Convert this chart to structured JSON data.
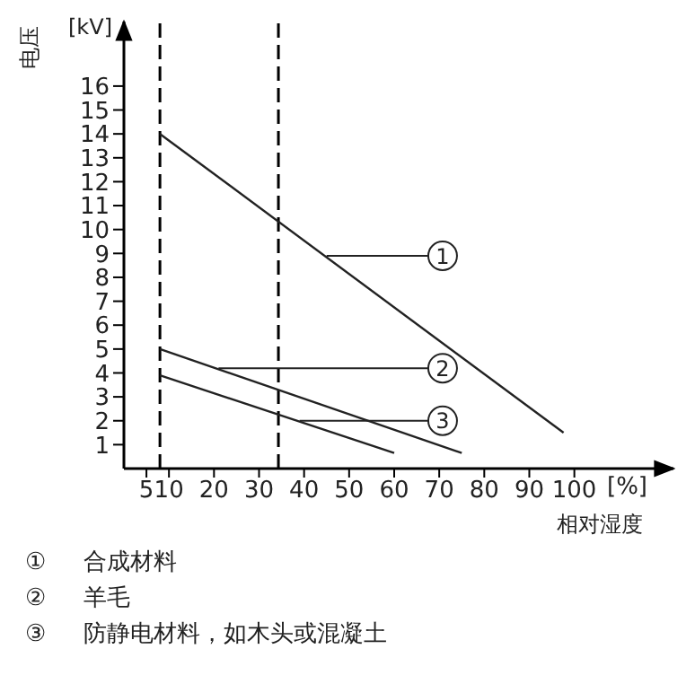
{
  "chart_data": {
    "type": "line",
    "ylabel": "电压",
    "xlabel": "相对湿度",
    "xlim": [
      0,
      122
    ],
    "ylim": [
      0,
      18.7
    ],
    "xticks": [
      5,
      10,
      20,
      30,
      40,
      50,
      60,
      70,
      80,
      90,
      100
    ],
    "yticks": [
      1,
      2,
      3,
      4,
      5,
      6,
      7,
      8,
      9,
      10,
      11,
      12,
      13,
      14,
      15,
      16
    ],
    "series": [
      {
        "color": "#222222",
        "x": [
          8,
          97.6
        ],
        "values": [
          14,
          1.5
        ]
      },
      {
        "color": "#222222",
        "x": [
          8,
          75
        ],
        "values": [
          5,
          0.65
        ]
      },
      {
        "color": "#222222",
        "x": [
          8,
          60
        ],
        "values": [
          3.9,
          0.65
        ]
      }
    ],
    "ref_lines": [
      {
        "axis": "x",
        "value": 8,
        "line_style": "dashed",
        "color": "#000000"
      },
      {
        "axis": "x",
        "value": 34.3,
        "line_style": "dashed",
        "color": "#000000"
      }
    ],
    "annotations": [
      {
        "text": "1",
        "x": 45,
        "y": 8.9
      },
      {
        "text": "2",
        "x": 21,
        "y": 4.2
      },
      {
        "text": "3",
        "x": 39,
        "y": 2
      },
      "[kV]",
      "[%]",
      "①     合成材料",
      "②     羊毛",
      "③     防静电材料，如木头或混凝土"
    ],
    "grid": false,
    "marker": "none",
    "line_style": "solid"
  }
}
